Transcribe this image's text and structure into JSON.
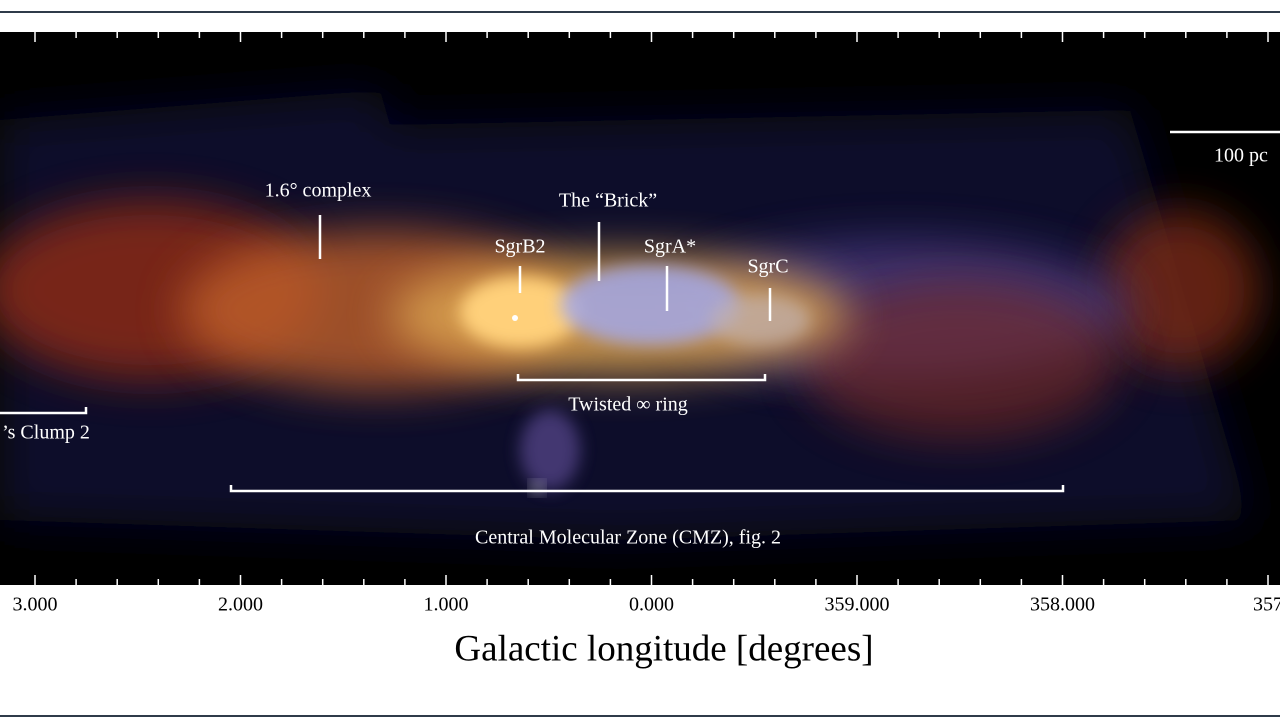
{
  "figure": {
    "annotations": {
      "complex": "1.6° complex",
      "brick": "The “Brick”",
      "sgrb2": "SgrB2",
      "sgra": "SgrA*",
      "sgrc": "SgrC",
      "ring": "Twisted ∞ ring",
      "scale": "100 pc",
      "clump": "’s Clump 2",
      "cmz": "Central Molecular Zone (CMZ), fig. 2"
    },
    "axis": {
      "ticks": [
        "3.000",
        "2.000",
        "1.000",
        "0.000",
        "359.000",
        "358.000",
        "357"
      ],
      "label": "Galactic longitude [degrees]"
    }
  }
}
